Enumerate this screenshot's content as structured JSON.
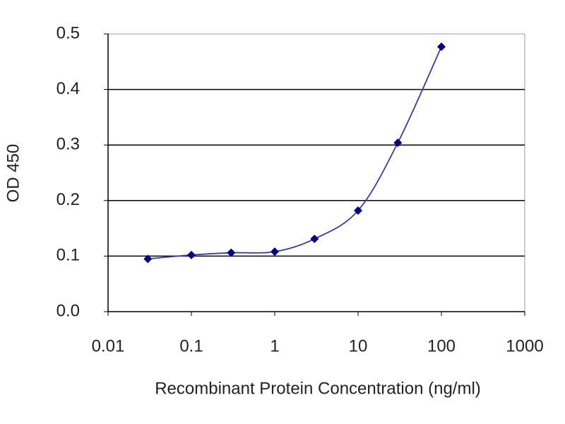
{
  "chart_data": {
    "type": "line",
    "x_label": "Recombinant Protein Concentration (ng/ml)",
    "y_label": "OD 450",
    "x": [
      0.03,
      0.1,
      0.3,
      1,
      3,
      10,
      30,
      100
    ],
    "series": [
      {
        "color": "#000080",
        "values": [
          0.095,
          0.102,
          0.106,
          0.108,
          0.131,
          0.182,
          0.304,
          0.477
        ]
      }
    ],
    "xlim": [
      0.01,
      1000
    ],
    "xticks": [
      0.01,
      0.1,
      1,
      10,
      100,
      1000
    ],
    "xscale": "log",
    "ylim": [
      0,
      0.5
    ],
    "yticks": [
      {
        "value": 0,
        "label": "0.0"
      },
      0.1,
      0.2,
      0.3,
      0.4,
      0.5
    ],
    "grid": true
  }
}
